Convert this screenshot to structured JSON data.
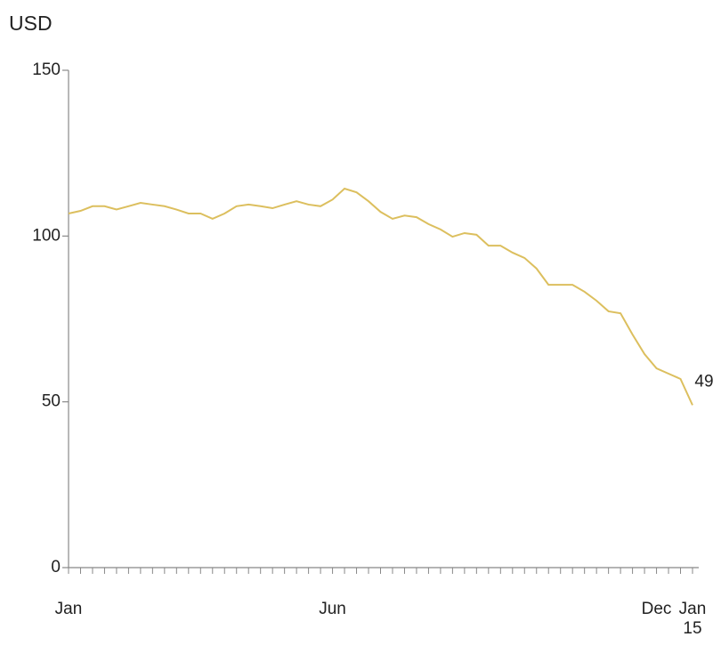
{
  "chart_data": {
    "type": "line",
    "title": "USD",
    "categories": [
      "Jan",
      null,
      null,
      null,
      null,
      null,
      null,
      null,
      null,
      null,
      null,
      null,
      null,
      null,
      null,
      null,
      null,
      null,
      null,
      null,
      null,
      null,
      "Jun",
      null,
      null,
      null,
      null,
      null,
      null,
      null,
      null,
      null,
      null,
      null,
      null,
      null,
      null,
      null,
      null,
      null,
      null,
      null,
      null,
      null,
      null,
      null,
      null,
      null,
      null,
      "Dec",
      null,
      null,
      "Jan 15"
    ],
    "series": [
      {
        "name": "USD",
        "color": "#dcbf5e",
        "values": [
          106.8,
          107.6,
          109,
          109,
          108,
          109,
          110,
          109.5,
          109,
          108,
          106.8,
          106.8,
          105.2,
          106.8,
          109,
          109.5,
          109,
          108.4,
          109.5,
          110.5,
          109.5,
          109,
          111,
          114.3,
          113.2,
          110.5,
          107.3,
          105.2,
          106.2,
          105.7,
          103.6,
          102,
          99.8,
          100.9,
          100.4,
          97.1,
          97.1,
          95,
          93.4,
          90.2,
          85.3,
          85.3,
          85.3,
          83.2,
          80.5,
          77.3,
          76.7,
          70.3,
          64.4,
          60.1,
          58.5,
          56.9,
          49
        ],
        "value_labels": [
          null,
          null,
          null,
          null,
          null,
          null,
          null,
          null,
          null,
          null,
          null,
          null,
          null,
          null,
          null,
          null,
          null,
          null,
          null,
          null,
          null,
          null,
          null,
          null,
          null,
          null,
          null,
          null,
          null,
          null,
          null,
          null,
          null,
          null,
          null,
          null,
          null,
          null,
          null,
          null,
          null,
          null,
          null,
          null,
          null,
          null,
          null,
          null,
          null,
          null,
          null,
          null,
          "49"
        ]
      }
    ],
    "ylim": [
      0,
      150
    ],
    "yticks": [
      0,
      50,
      100,
      150
    ],
    "grid": false
  }
}
